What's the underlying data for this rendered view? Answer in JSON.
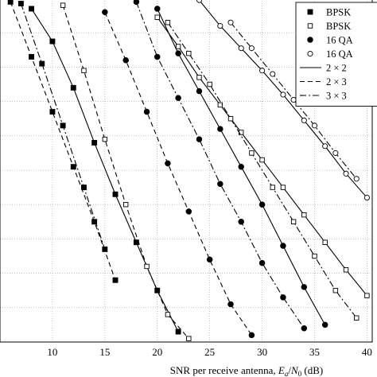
{
  "chart_data": {
    "type": "line",
    "xlabel_prefix": "SNR per receive antenna, ",
    "xlabel_var": "E",
    "xlabel_sub": "a",
    "xlabel_div": "/",
    "xlabel_var2": "N",
    "xlabel_sub2": "0",
    "xlabel_unit": " (dB)",
    "x_ticks": [
      10,
      15,
      20,
      25,
      30,
      35,
      40
    ],
    "xlim": [
      5,
      40.5
    ],
    "ylim": [
      0.0,
      1.0
    ],
    "grid": true,
    "legend_position": "top-right",
    "legend": [
      {
        "label": "BPSK",
        "marker": "filled-square"
      },
      {
        "label": "BPSK",
        "marker": "open-square"
      },
      {
        "label": "16 QA",
        "marker": "filled-circle"
      },
      {
        "label": "16 QA",
        "marker": "open-circle"
      },
      {
        "label": "2 × 2",
        "linestyle": "solid"
      },
      {
        "label": "2 × 3",
        "linestyle": "dashed"
      },
      {
        "label": "3 × 3",
        "linestyle": "dashdot"
      }
    ],
    "series": [
      {
        "marker": "filled-square",
        "linestyle": "solid",
        "x": [
          8,
          10,
          12,
          14,
          16,
          18,
          20,
          22
        ],
        "y": [
          0.97,
          0.875,
          0.74,
          0.58,
          0.43,
          0.29,
          0.15,
          0.03
        ]
      },
      {
        "marker": "filled-square",
        "linestyle": "dashed",
        "x": [
          6,
          8,
          10,
          12,
          14,
          16
        ],
        "y": [
          0.99,
          0.83,
          0.67,
          0.51,
          0.35,
          0.18
        ]
      },
      {
        "marker": "filled-square",
        "linestyle": "dashdot",
        "x": [
          7,
          9,
          11,
          13,
          15
        ],
        "y": [
          0.985,
          0.81,
          0.63,
          0.45,
          0.27
        ]
      },
      {
        "marker": "open-square",
        "linestyle": "solid",
        "x": [
          20,
          22,
          24,
          26,
          28,
          30,
          32,
          34,
          36,
          38,
          40
        ],
        "y": [
          0.945,
          0.86,
          0.77,
          0.69,
          0.61,
          0.53,
          0.45,
          0.37,
          0.29,
          0.21,
          0.135
        ]
      },
      {
        "marker": "open-square",
        "linestyle": "dashed",
        "x": [
          11,
          13,
          15,
          17,
          19,
          21,
          23
        ],
        "y": [
          0.98,
          0.79,
          0.59,
          0.4,
          0.22,
          0.08,
          0.01
        ]
      },
      {
        "marker": "open-square",
        "linestyle": "dashdot",
        "x": [
          21,
          23,
          25,
          27,
          29,
          31,
          33,
          35,
          37,
          39
        ],
        "y": [
          0.93,
          0.84,
          0.75,
          0.65,
          0.55,
          0.45,
          0.35,
          0.25,
          0.15,
          0.07
        ]
      },
      {
        "marker": "filled-circle",
        "linestyle": "solid",
        "x": [
          20,
          22,
          24,
          26,
          28,
          30,
          32,
          34,
          36
        ],
        "y": [
          0.97,
          0.84,
          0.73,
          0.62,
          0.51,
          0.4,
          0.28,
          0.16,
          0.05
        ]
      },
      {
        "marker": "filled-circle",
        "linestyle": "dashed",
        "x": [
          15,
          17,
          19,
          21,
          23,
          25,
          27,
          29
        ],
        "y": [
          0.96,
          0.82,
          0.67,
          0.52,
          0.38,
          0.24,
          0.11,
          0.02
        ]
      },
      {
        "marker": "filled-circle",
        "linestyle": "dashdot",
        "x": [
          18,
          20,
          22,
          24,
          26,
          28,
          30,
          32,
          34
        ],
        "y": [
          0.99,
          0.83,
          0.71,
          0.59,
          0.46,
          0.35,
          0.23,
          0.13,
          0.04
        ]
      },
      {
        "marker": "open-circle",
        "linestyle": "solid",
        "x": [
          24,
          26,
          28,
          30,
          32,
          34,
          36,
          38,
          40
        ],
        "y": [
          0.995,
          0.92,
          0.855,
          0.79,
          0.72,
          0.645,
          0.57,
          0.49,
          0.42
        ]
      },
      {
        "marker": "open-circle",
        "linestyle": "dashdot",
        "x": [
          27,
          29,
          31,
          33,
          35,
          37,
          39
        ],
        "y": [
          0.93,
          0.855,
          0.78,
          0.705,
          0.63,
          0.55,
          0.475
        ]
      }
    ]
  }
}
